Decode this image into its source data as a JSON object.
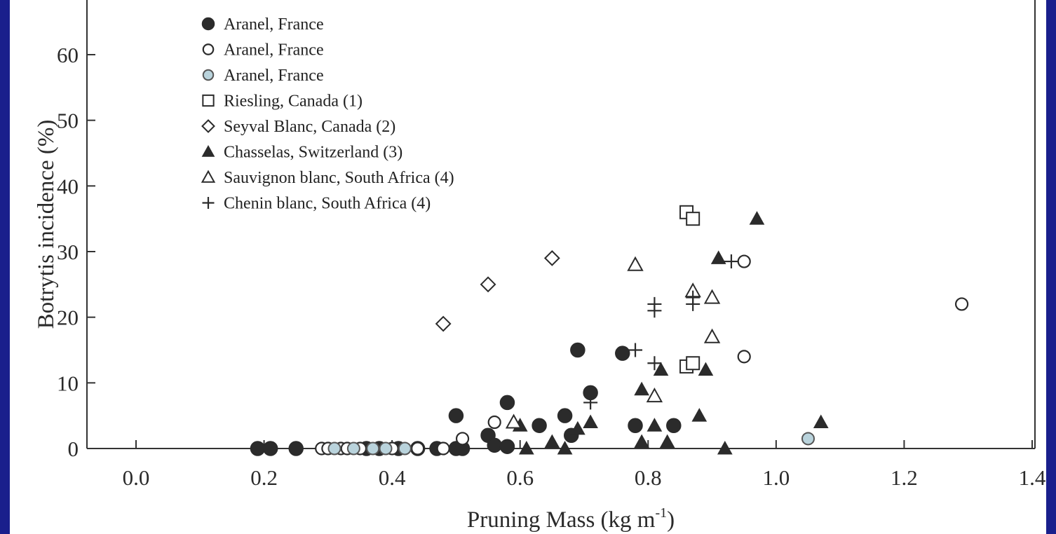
{
  "chart_data": {
    "type": "scatter",
    "xlabel": "Pruning Mass (kg m",
    "xlabel_sup": "-1",
    "xlabel_end": ")",
    "ylabel": "Botrytis incidence (%)",
    "xlim": [
      0.0,
      1.4
    ],
    "ylim": [
      0,
      65
    ],
    "xticks": [
      "0.0",
      "0.2",
      "0.4",
      "0.6",
      "0.8",
      "1.0",
      "1.2",
      "1.4"
    ],
    "yticks": [
      "0",
      "10",
      "20",
      "30",
      "40",
      "50",
      "60"
    ],
    "legend_position": "top-left",
    "series": [
      {
        "name": "Aranel, France",
        "marker": "filled-circle",
        "points": [
          [
            0.19,
            0
          ],
          [
            0.21,
            0
          ],
          [
            0.25,
            0
          ],
          [
            0.36,
            0
          ],
          [
            0.38,
            0
          ],
          [
            0.41,
            0
          ],
          [
            0.44,
            0
          ],
          [
            0.47,
            0
          ],
          [
            0.5,
            0
          ],
          [
            0.51,
            0
          ],
          [
            0.5,
            5
          ],
          [
            0.55,
            2
          ],
          [
            0.56,
            0.5
          ],
          [
            0.58,
            7
          ],
          [
            0.58,
            0.3
          ],
          [
            0.63,
            3.5
          ],
          [
            0.67,
            5
          ],
          [
            0.69,
            15
          ],
          [
            0.68,
            2
          ],
          [
            0.71,
            8.5
          ],
          [
            0.76,
            14.5
          ],
          [
            0.78,
            3.5
          ],
          [
            0.84,
            3.5
          ]
        ]
      },
      {
        "name": "Aranel, France",
        "marker": "open-circle",
        "points": [
          [
            0.29,
            0
          ],
          [
            0.3,
            0
          ],
          [
            0.32,
            0
          ],
          [
            0.33,
            0
          ],
          [
            0.35,
            0
          ],
          [
            0.4,
            0
          ],
          [
            0.44,
            0
          ],
          [
            0.48,
            0
          ],
          [
            0.51,
            1.5
          ],
          [
            0.56,
            4
          ],
          [
            0.95,
            28.5
          ],
          [
            0.95,
            14
          ],
          [
            1.29,
            22
          ]
        ]
      },
      {
        "name": "Aranel, France",
        "marker": "gray-circle",
        "points": [
          [
            0.31,
            0
          ],
          [
            0.34,
            0
          ],
          [
            0.37,
            0
          ],
          [
            0.39,
            0
          ],
          [
            0.42,
            0
          ],
          [
            1.05,
            1.5
          ]
        ]
      },
      {
        "name": "Riesling, Canada (1)",
        "marker": "open-square",
        "points": [
          [
            0.86,
            36
          ],
          [
            0.87,
            35
          ],
          [
            0.86,
            12.5
          ],
          [
            0.87,
            13
          ]
        ]
      },
      {
        "name": "Seyval Blanc, Canada (2)",
        "marker": "open-diamond",
        "points": [
          [
            0.48,
            19
          ],
          [
            0.55,
            25
          ],
          [
            0.65,
            29
          ]
        ]
      },
      {
        "name": "Chasselas, Switzerland (3)",
        "marker": "filled-triangle",
        "points": [
          [
            0.6,
            3.5
          ],
          [
            0.61,
            0
          ],
          [
            0.65,
            1
          ],
          [
            0.67,
            0
          ],
          [
            0.69,
            3
          ],
          [
            0.71,
            4
          ],
          [
            0.79,
            9
          ],
          [
            0.79,
            1
          ],
          [
            0.81,
            3.5
          ],
          [
            0.82,
            12
          ],
          [
            0.83,
            1
          ],
          [
            0.88,
            5
          ],
          [
            0.89,
            12
          ],
          [
            0.91,
            29
          ],
          [
            0.92,
            0
          ],
          [
            0.97,
            35
          ],
          [
            1.07,
            4
          ]
        ]
      },
      {
        "name": "Sauvignon blanc, South Africa (4)",
        "marker": "open-triangle",
        "points": [
          [
            0.78,
            28
          ],
          [
            0.81,
            8
          ],
          [
            0.87,
            24
          ],
          [
            0.9,
            23
          ],
          [
            0.9,
            17
          ],
          [
            0.59,
            4
          ]
        ]
      },
      {
        "name": "Chenin blanc, South Africa (4)",
        "marker": "plus",
        "points": [
          [
            0.81,
            22
          ],
          [
            0.81,
            21
          ],
          [
            0.87,
            23
          ],
          [
            0.87,
            22
          ],
          [
            0.93,
            28.5
          ],
          [
            0.78,
            15
          ],
          [
            0.81,
            13
          ],
          [
            0.71,
            7
          ]
        ]
      }
    ]
  }
}
